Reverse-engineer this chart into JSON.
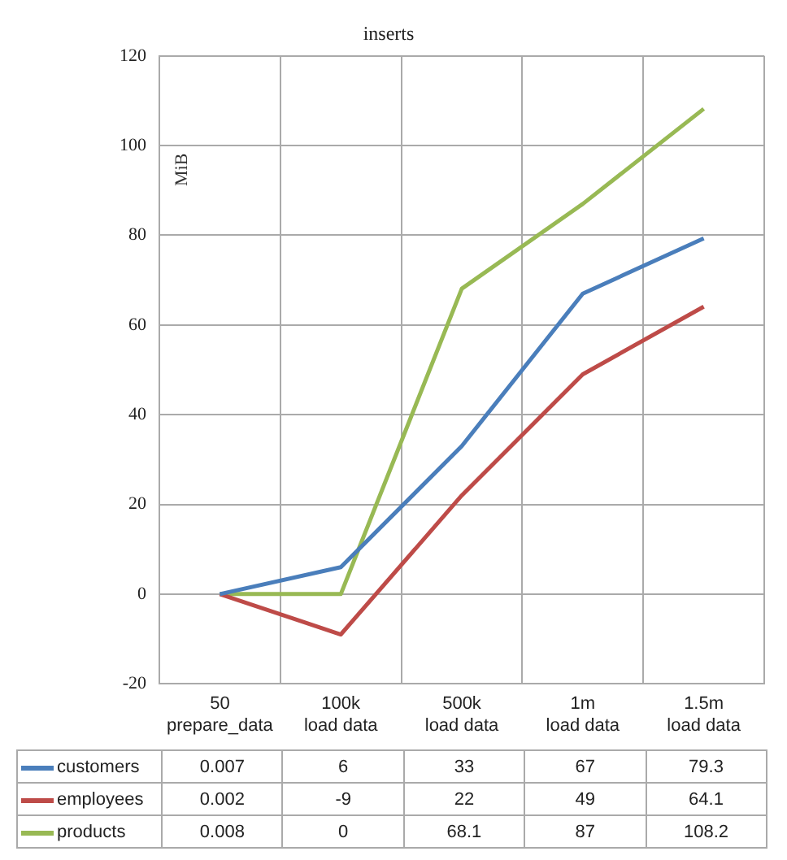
{
  "chart_data": {
    "type": "line",
    "title": "inserts",
    "ylabel": "MiB",
    "categories": [
      "50 prepare_data",
      "100k load data",
      "500k load data",
      "1m load data",
      "1.5m load data"
    ],
    "series": [
      {
        "name": "customers",
        "color": "#4a7ebb",
        "values": [
          0.007,
          6,
          33,
          67,
          79.3
        ]
      },
      {
        "name": "employees",
        "color": "#be4b48",
        "values": [
          0.002,
          -9,
          22,
          49,
          64.1
        ]
      },
      {
        "name": "products",
        "color": "#98b954",
        "values": [
          0.008,
          0,
          68.1,
          87,
          108.2
        ]
      }
    ],
    "ylim": [
      -20,
      120
    ],
    "yticks": [
      -20,
      0,
      20,
      40,
      60,
      80,
      100,
      120
    ],
    "grid": true,
    "legend": "bottom",
    "data_labels": true,
    "marker": "none",
    "line_style": "solid"
  }
}
